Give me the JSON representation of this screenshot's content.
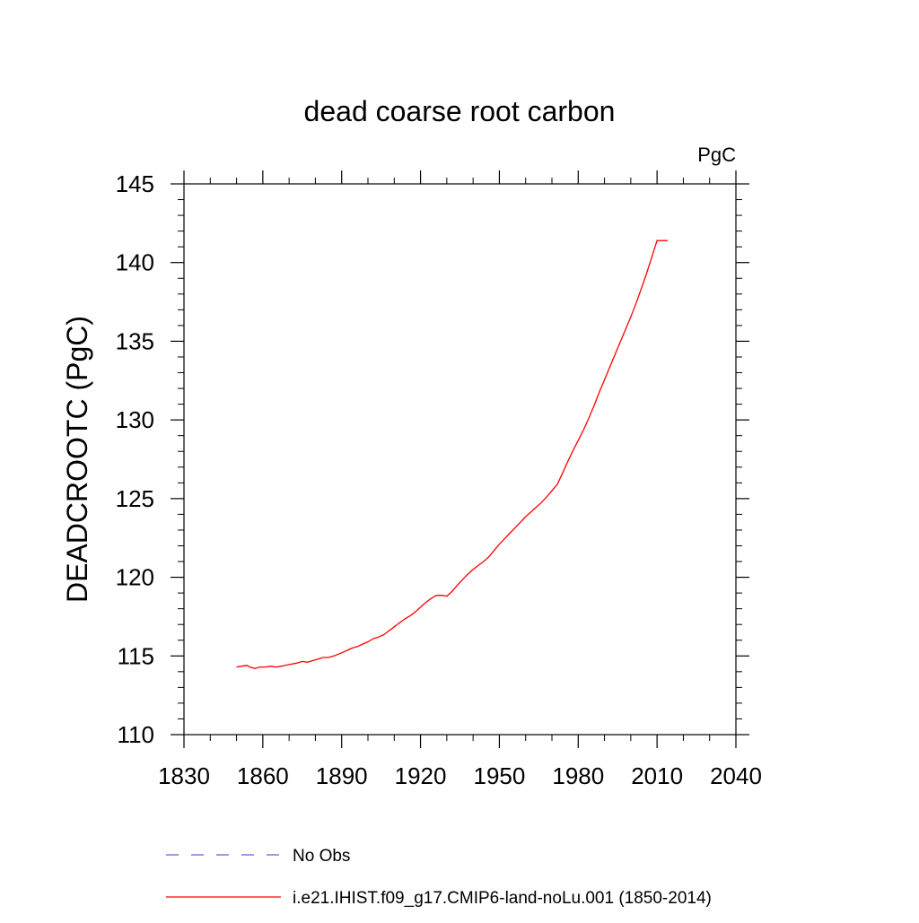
{
  "chart_data": {
    "type": "line",
    "title": "dead coarse root carbon",
    "units_label": "PgC",
    "ylabel": "DEADCROOTC  (PgC)",
    "xlabel": "",
    "xlim": [
      1830,
      2040
    ],
    "ylim": [
      110,
      145
    ],
    "x_ticks": [
      1830,
      1860,
      1890,
      1920,
      1950,
      1980,
      2010,
      2040
    ],
    "y_ticks": [
      110,
      115,
      120,
      125,
      130,
      135,
      140,
      145
    ],
    "grid": false,
    "series": [
      {
        "name": "i.e21.IHIST.f09_g17.CMIP6-land-noLu.001 (1850-2014)",
        "color": "#ff0000",
        "style": "solid",
        "x": [
          1850,
          1852,
          1854,
          1855,
          1857,
          1859,
          1861,
          1863,
          1865,
          1867,
          1870,
          1873,
          1875,
          1877,
          1879,
          1881,
          1883,
          1885,
          1887,
          1890,
          1892,
          1894,
          1896,
          1898,
          1900,
          1902,
          1904,
          1906,
          1908,
          1910,
          1912,
          1914,
          1916,
          1918,
          1920,
          1922,
          1924,
          1926,
          1928,
          1930,
          1932,
          1934,
          1936,
          1938,
          1940,
          1942,
          1944,
          1946,
          1948,
          1950,
          1952,
          1954,
          1956,
          1958,
          1960,
          1962,
          1964,
          1966,
          1968,
          1970,
          1972,
          1974,
          1976,
          1978,
          1980,
          1982,
          1984,
          1986,
          1988,
          1990,
          1992,
          1994,
          1996,
          1998,
          2000,
          2002,
          2004,
          2006,
          2008,
          2010,
          2012,
          2014
        ],
        "y": [
          114.3,
          114.35,
          114.4,
          114.3,
          114.2,
          114.3,
          114.3,
          114.35,
          114.3,
          114.35,
          114.45,
          114.55,
          114.65,
          114.6,
          114.7,
          114.8,
          114.9,
          114.9,
          115.0,
          115.2,
          115.35,
          115.5,
          115.6,
          115.75,
          115.9,
          116.1,
          116.2,
          116.35,
          116.6,
          116.85,
          117.1,
          117.35,
          117.55,
          117.8,
          118.1,
          118.4,
          118.65,
          118.85,
          118.85,
          118.8,
          119.1,
          119.5,
          119.85,
          120.2,
          120.5,
          120.75,
          121.0,
          121.3,
          121.7,
          122.1,
          122.45,
          122.8,
          123.15,
          123.5,
          123.85,
          124.15,
          124.45,
          124.75,
          125.1,
          125.5,
          125.9,
          126.6,
          127.35,
          128.05,
          128.7,
          129.35,
          130.1,
          130.9,
          131.75,
          132.55,
          133.35,
          134.15,
          134.95,
          135.75,
          136.55,
          137.4,
          138.35,
          139.3,
          140.35,
          141.4,
          141.4,
          141.4
        ]
      }
    ],
    "legend": [
      {
        "label": "No Obs",
        "color": "#6a5acd",
        "style": "dashed"
      },
      {
        "label": "i.e21.IHIST.f09_g17.CMIP6-land-noLu.001 (1850-2014)",
        "color": "#ff0000",
        "style": "solid"
      }
    ],
    "legend_placement": "bottom"
  }
}
